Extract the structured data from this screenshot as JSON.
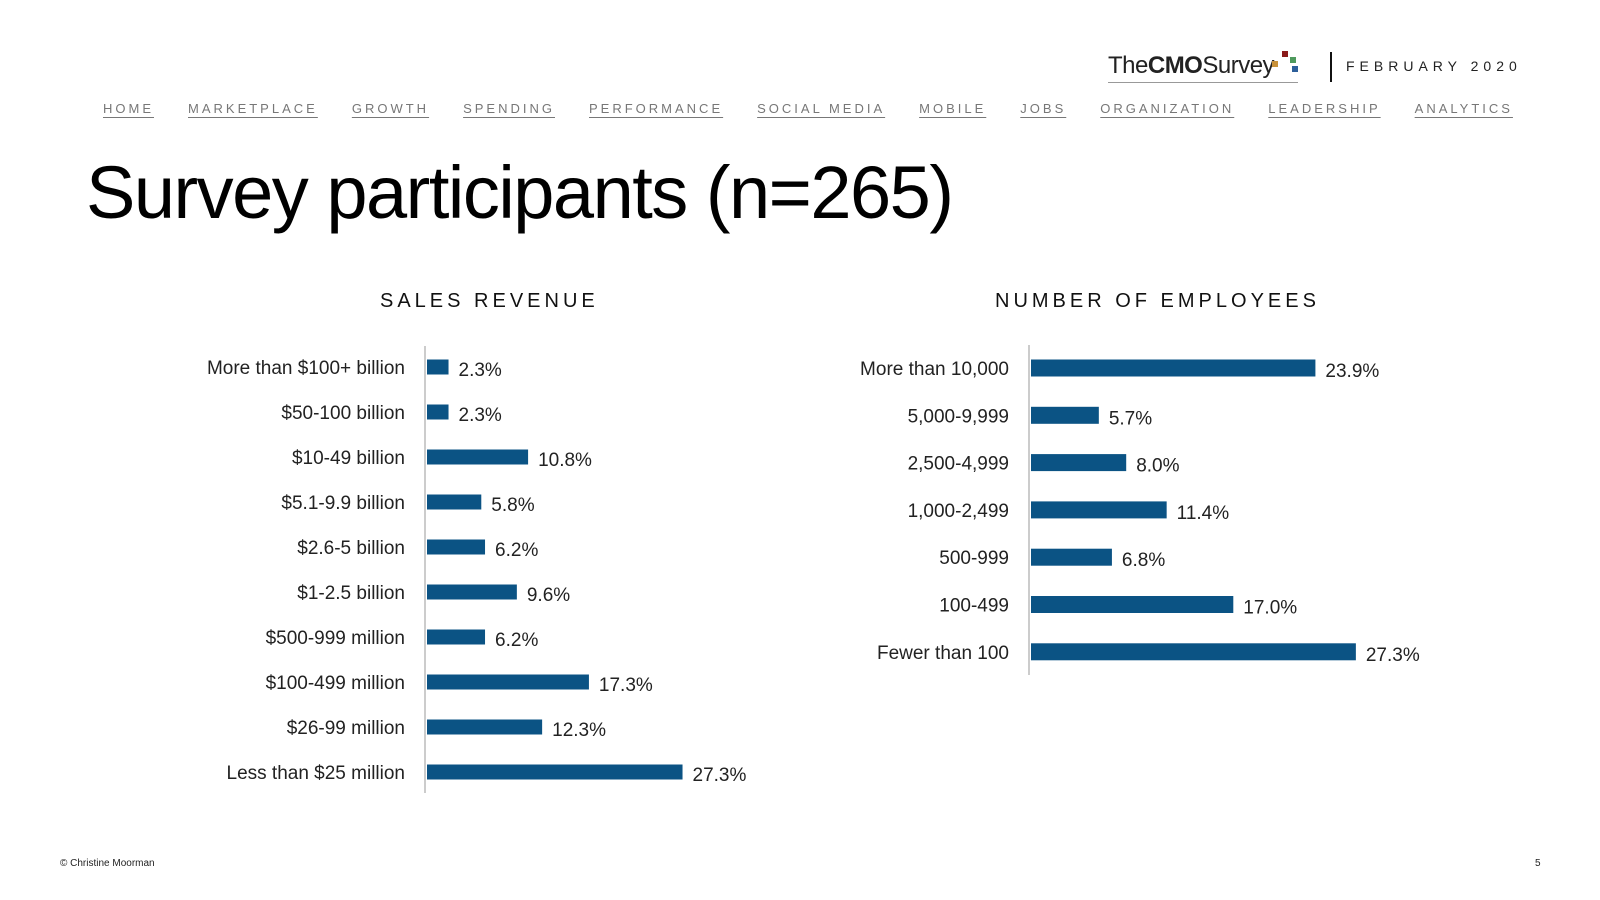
{
  "header": {
    "logo_the": "The",
    "logo_cmo": "CMO",
    "logo_survey": "Survey",
    "date": "FEBRUARY 2020",
    "logo_dot_colors": [
      "#8b1a1a",
      "#c8913a",
      "#4f9a5d",
      "#2d5f9a"
    ]
  },
  "nav": [
    "HOME",
    "MARKETPLACE",
    "GROWTH",
    "SPENDING",
    "PERFORMANCE",
    "SOCIAL MEDIA",
    "MOBILE",
    "JOBS",
    "ORGANIZATION",
    "LEADERSHIP",
    "ANALYTICS"
  ],
  "page_title": "Survey participants (n=265)",
  "chart_data": [
    {
      "type": "bar",
      "orientation": "horizontal",
      "title": "SALES REVENUE",
      "categories": [
        "More than $100+ billion",
        "$50-100 billion",
        "$10-49 billion",
        "$5.1-9.9 billion",
        "$2.6-5 billion",
        "$1-2.5 billion",
        "$500-999 million",
        "$100-499 million",
        "$26-99 million",
        "Less than $25 million"
      ],
      "values": [
        2.3,
        2.3,
        10.8,
        5.8,
        6.2,
        9.6,
        6.2,
        17.3,
        12.3,
        27.3
      ],
      "data_labels": [
        "2.3%",
        "2.3%",
        "10.8%",
        "5.8%",
        "6.2%",
        "9.6%",
        "6.2%",
        "17.3%",
        "12.3%",
        "27.3%"
      ],
      "unit": "%",
      "color": "#0b5384",
      "grid": false
    },
    {
      "type": "bar",
      "orientation": "horizontal",
      "title": "NUMBER OF EMPLOYEES",
      "categories": [
        "More than 10,000",
        "5,000-9,999",
        "2,500-4,999",
        "1,000-2,499",
        "500-999",
        "100-499",
        "Fewer than 100"
      ],
      "values": [
        23.9,
        5.7,
        8.0,
        11.4,
        6.8,
        17.0,
        27.3
      ],
      "data_labels": [
        "23.9%",
        "5.7%",
        "8.0%",
        "11.4%",
        "6.8%",
        "17.0%",
        "27.3%"
      ],
      "unit": "%",
      "color": "#0b5384",
      "grid": false
    }
  ],
  "footer": {
    "copyright": "© Christine Moorman",
    "page_number": "5"
  }
}
